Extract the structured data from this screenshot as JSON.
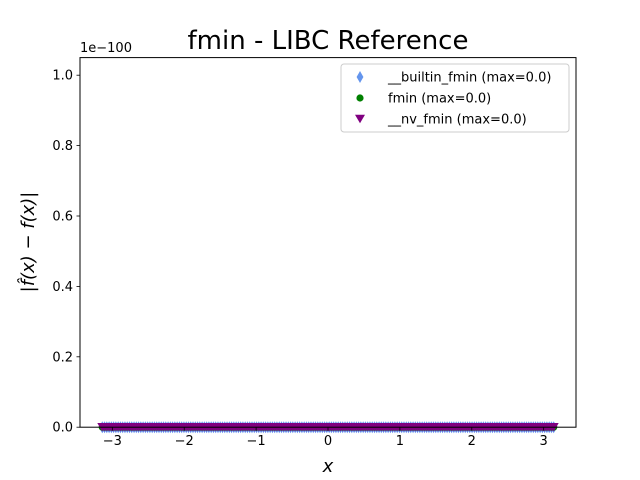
{
  "chart_data": {
    "type": "scatter",
    "title": "fmin - LIBC Reference",
    "xlabel": "x",
    "ylabel": "|f̂(x) − f(x)|",
    "y_offset_text": "1e−100",
    "xlim": [
      -3.45,
      3.45
    ],
    "ylim": [
      0,
      1.05
    ],
    "x_range": [
      -3.14,
      3.14
    ],
    "point_count": 200,
    "x_ticks": [
      -3,
      -2,
      -1,
      0,
      1,
      2,
      3
    ],
    "x_tick_labels": [
      "−3",
      "−2",
      "−1",
      "0",
      "1",
      "2",
      "3"
    ],
    "y_ticks": [
      0.0,
      0.2,
      0.4,
      0.6,
      0.8,
      1.0
    ],
    "y_tick_labels": [
      "0.0",
      "0.2",
      "0.4",
      "0.6",
      "0.8",
      "1.0"
    ],
    "grid": false,
    "legend_position": "top-right",
    "series": [
      {
        "name": "__builtin_fmin (max=0.0)",
        "marker": "thin-diamond",
        "color": "#6495ed",
        "y_value": 0.0
      },
      {
        "name": "fmin (max=0.0)",
        "marker": "circle",
        "color": "#008000",
        "y_value": 0.0
      },
      {
        "name": "__nv_fmin (max=0.0)",
        "marker": "triangle-down",
        "color": "#800080",
        "y_value": 0.0
      }
    ]
  }
}
